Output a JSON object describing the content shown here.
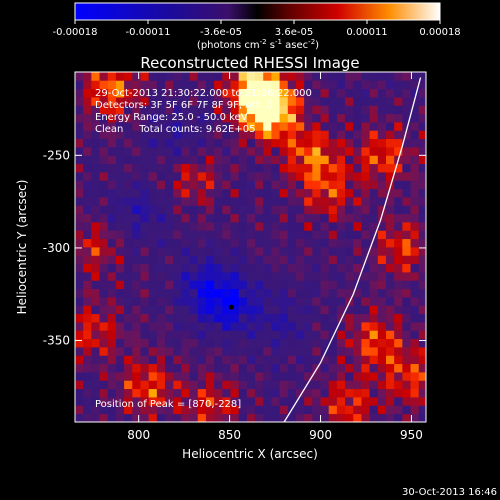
{
  "chart_data": {
    "type": "heatmap",
    "title": "Reconstructed RHESSI Image",
    "xlabel": "Heliocentric X (arcsec)",
    "ylabel": "Heliocentric Y (arcsec)",
    "xlim": [
      765,
      958
    ],
    "ylim": [
      -394,
      -205
    ],
    "x_ticks": [
      800,
      850,
      900,
      950
    ],
    "y_ticks": [
      -250,
      -300,
      -350
    ],
    "colorbar": {
      "ticks": [
        "-0.00018",
        "-0.00011",
        "-3.6e-05",
        "3.6e-05",
        "0.00011",
        "0.00018"
      ],
      "unit_parts": [
        "(photons cm",
        "-2",
        " s",
        "-1",
        " asec",
        "-2",
        ")"
      ]
    },
    "annotations": [
      "29-Oct-2013 21:30:22.000 to 21:36:22.000",
      "Detectors: 3F 5F 6F 7F 8F 9F, Att: 0",
      "Energy Range: 25.0 - 50.0 keV",
      "Clean     Total counts: 9.62E+05"
    ],
    "peak_label": "Position of Peak = [870,-228]",
    "peak": [
      870,
      -228
    ],
    "minimum_marker": [
      851,
      -332
    ],
    "limb_curve": [
      [
        880,
        -394
      ],
      [
        900,
        -362
      ],
      [
        918,
        -325
      ],
      [
        933,
        -285
      ],
      [
        945,
        -245
      ],
      [
        955,
        -208
      ]
    ],
    "hot_spots": [
      {
        "x": 872,
        "y": -226,
        "value": 1.0
      },
      {
        "x": 865,
        "y": -214,
        "value": 0.9
      },
      {
        "x": 785,
        "y": -214,
        "value": 0.65
      },
      {
        "x": 895,
        "y": -250,
        "value": 0.6
      },
      {
        "x": 905,
        "y": -270,
        "value": 0.45
      },
      {
        "x": 935,
        "y": -250,
        "value": 0.55
      },
      {
        "x": 945,
        "y": -300,
        "value": 0.5
      },
      {
        "x": 930,
        "y": -350,
        "value": 0.55
      },
      {
        "x": 950,
        "y": -370,
        "value": 0.5
      },
      {
        "x": 915,
        "y": -385,
        "value": 0.5
      },
      {
        "x": 840,
        "y": -385,
        "value": 0.45
      },
      {
        "x": 805,
        "y": -375,
        "value": 0.55
      },
      {
        "x": 775,
        "y": -345,
        "value": 0.45
      },
      {
        "x": 775,
        "y": -300,
        "value": 0.4
      },
      {
        "x": 830,
        "y": -262,
        "value": 0.4
      }
    ],
    "cold_spots": [
      {
        "x": 850,
        "y": -330,
        "value": -0.8
      },
      {
        "x": 835,
        "y": -320,
        "value": -0.55
      },
      {
        "x": 800,
        "y": -280,
        "value": -0.4
      },
      {
        "x": 820,
        "y": -240,
        "value": -0.35
      },
      {
        "x": 880,
        "y": -340,
        "value": -0.35
      }
    ]
  },
  "footer": {
    "timestamp": "30-Oct-2013 16:46"
  }
}
